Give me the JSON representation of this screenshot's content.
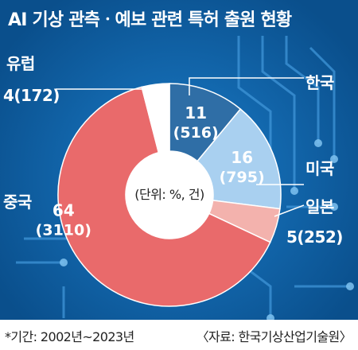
{
  "title": "AI 기상 관측ㆍ예보 관련 특허 출원 현황",
  "unit_note": "(단위: %, 건)",
  "footnote": "*기간: 2002년~2023년",
  "source": "〈자료: 한국기상산업기술원〉",
  "colors": {
    "background": "#0c5a9a",
    "korea": "#2f6ea6",
    "usa": "#a9d0f0",
    "japan": "#f3b2ad",
    "china": "#e96a6b",
    "europe": "#ffffff"
  },
  "chart_data": {
    "type": "pie",
    "style": "donut",
    "categories": [
      "한국",
      "미국",
      "일본",
      "중국",
      "유럽"
    ],
    "values": [
      11,
      16,
      5,
      64,
      4
    ],
    "counts": [
      516,
      795,
      252,
      3110,
      172
    ],
    "value_labels": [
      {
        "pct": "11",
        "count": "(516)"
      },
      {
        "pct": "16",
        "count": "(795)"
      },
      {
        "pct": "",
        "count": ""
      },
      {
        "pct": "64",
        "count": "(3110)"
      },
      {
        "pct": "",
        "count": ""
      }
    ],
    "outside_labels": {
      "europe": "유럽",
      "europe_value": "4(172)",
      "korea": "한국",
      "usa": "미국",
      "japan": "일본",
      "japan_value": "5(252)",
      "china": "중국"
    }
  }
}
